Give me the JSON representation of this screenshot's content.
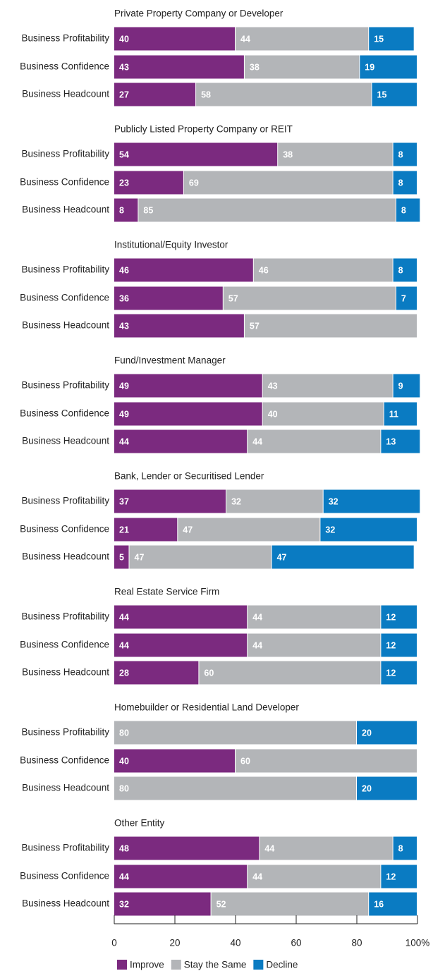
{
  "chart_data": {
    "type": "stacked_barh",
    "categories": [
      "Business Profitability",
      "Business Confidence",
      "Business Headcount"
    ],
    "series": [
      {
        "name": "Improve",
        "color": "#7b2a7f"
      },
      {
        "name": "Stay the Same",
        "color": "#b3b5b8"
      },
      {
        "name": "Decline",
        "color": "#0a7bc2"
      }
    ],
    "groups": [
      {
        "title": "Private Property Company or Developer",
        "values": [
          [
            40,
            43,
            27
          ],
          [
            44,
            38,
            58
          ],
          [
            15,
            19,
            15
          ]
        ]
      },
      {
        "title": "Publicly Listed Property Company or REIT",
        "values": [
          [
            54,
            23,
            8
          ],
          [
            38,
            69,
            85
          ],
          [
            8,
            8,
            8
          ]
        ]
      },
      {
        "title": "Institutional/Equity Investor",
        "values": [
          [
            46,
            36,
            43
          ],
          [
            46,
            57,
            57
          ],
          [
            8,
            7,
            null
          ]
        ]
      },
      {
        "title": "Fund/Investment Manager",
        "values": [
          [
            49,
            49,
            44
          ],
          [
            43,
            40,
            44
          ],
          [
            9,
            11,
            13
          ]
        ]
      },
      {
        "title": "Bank, Lender or Securitised Lender",
        "values": [
          [
            37,
            21,
            5
          ],
          [
            32,
            47,
            47
          ],
          [
            32,
            32,
            47
          ]
        ]
      },
      {
        "title": "Real Estate Service Firm",
        "values": [
          [
            44,
            44,
            28
          ],
          [
            44,
            44,
            60
          ],
          [
            12,
            12,
            12
          ]
        ]
      },
      {
        "title": "Homebuilder or Residential Land Developer",
        "values": [
          [
            null,
            40,
            null
          ],
          [
            80,
            60,
            80
          ],
          [
            20,
            null,
            20
          ]
        ]
      },
      {
        "title": "Other Entity",
        "values": [
          [
            48,
            44,
            32
          ],
          [
            44,
            44,
            52
          ],
          [
            8,
            12,
            16
          ]
        ]
      }
    ],
    "xlim": [
      0,
      100
    ],
    "xticks": [
      0,
      20,
      40,
      60,
      80,
      {
        "value": 100,
        "label": "100%"
      }
    ]
  }
}
